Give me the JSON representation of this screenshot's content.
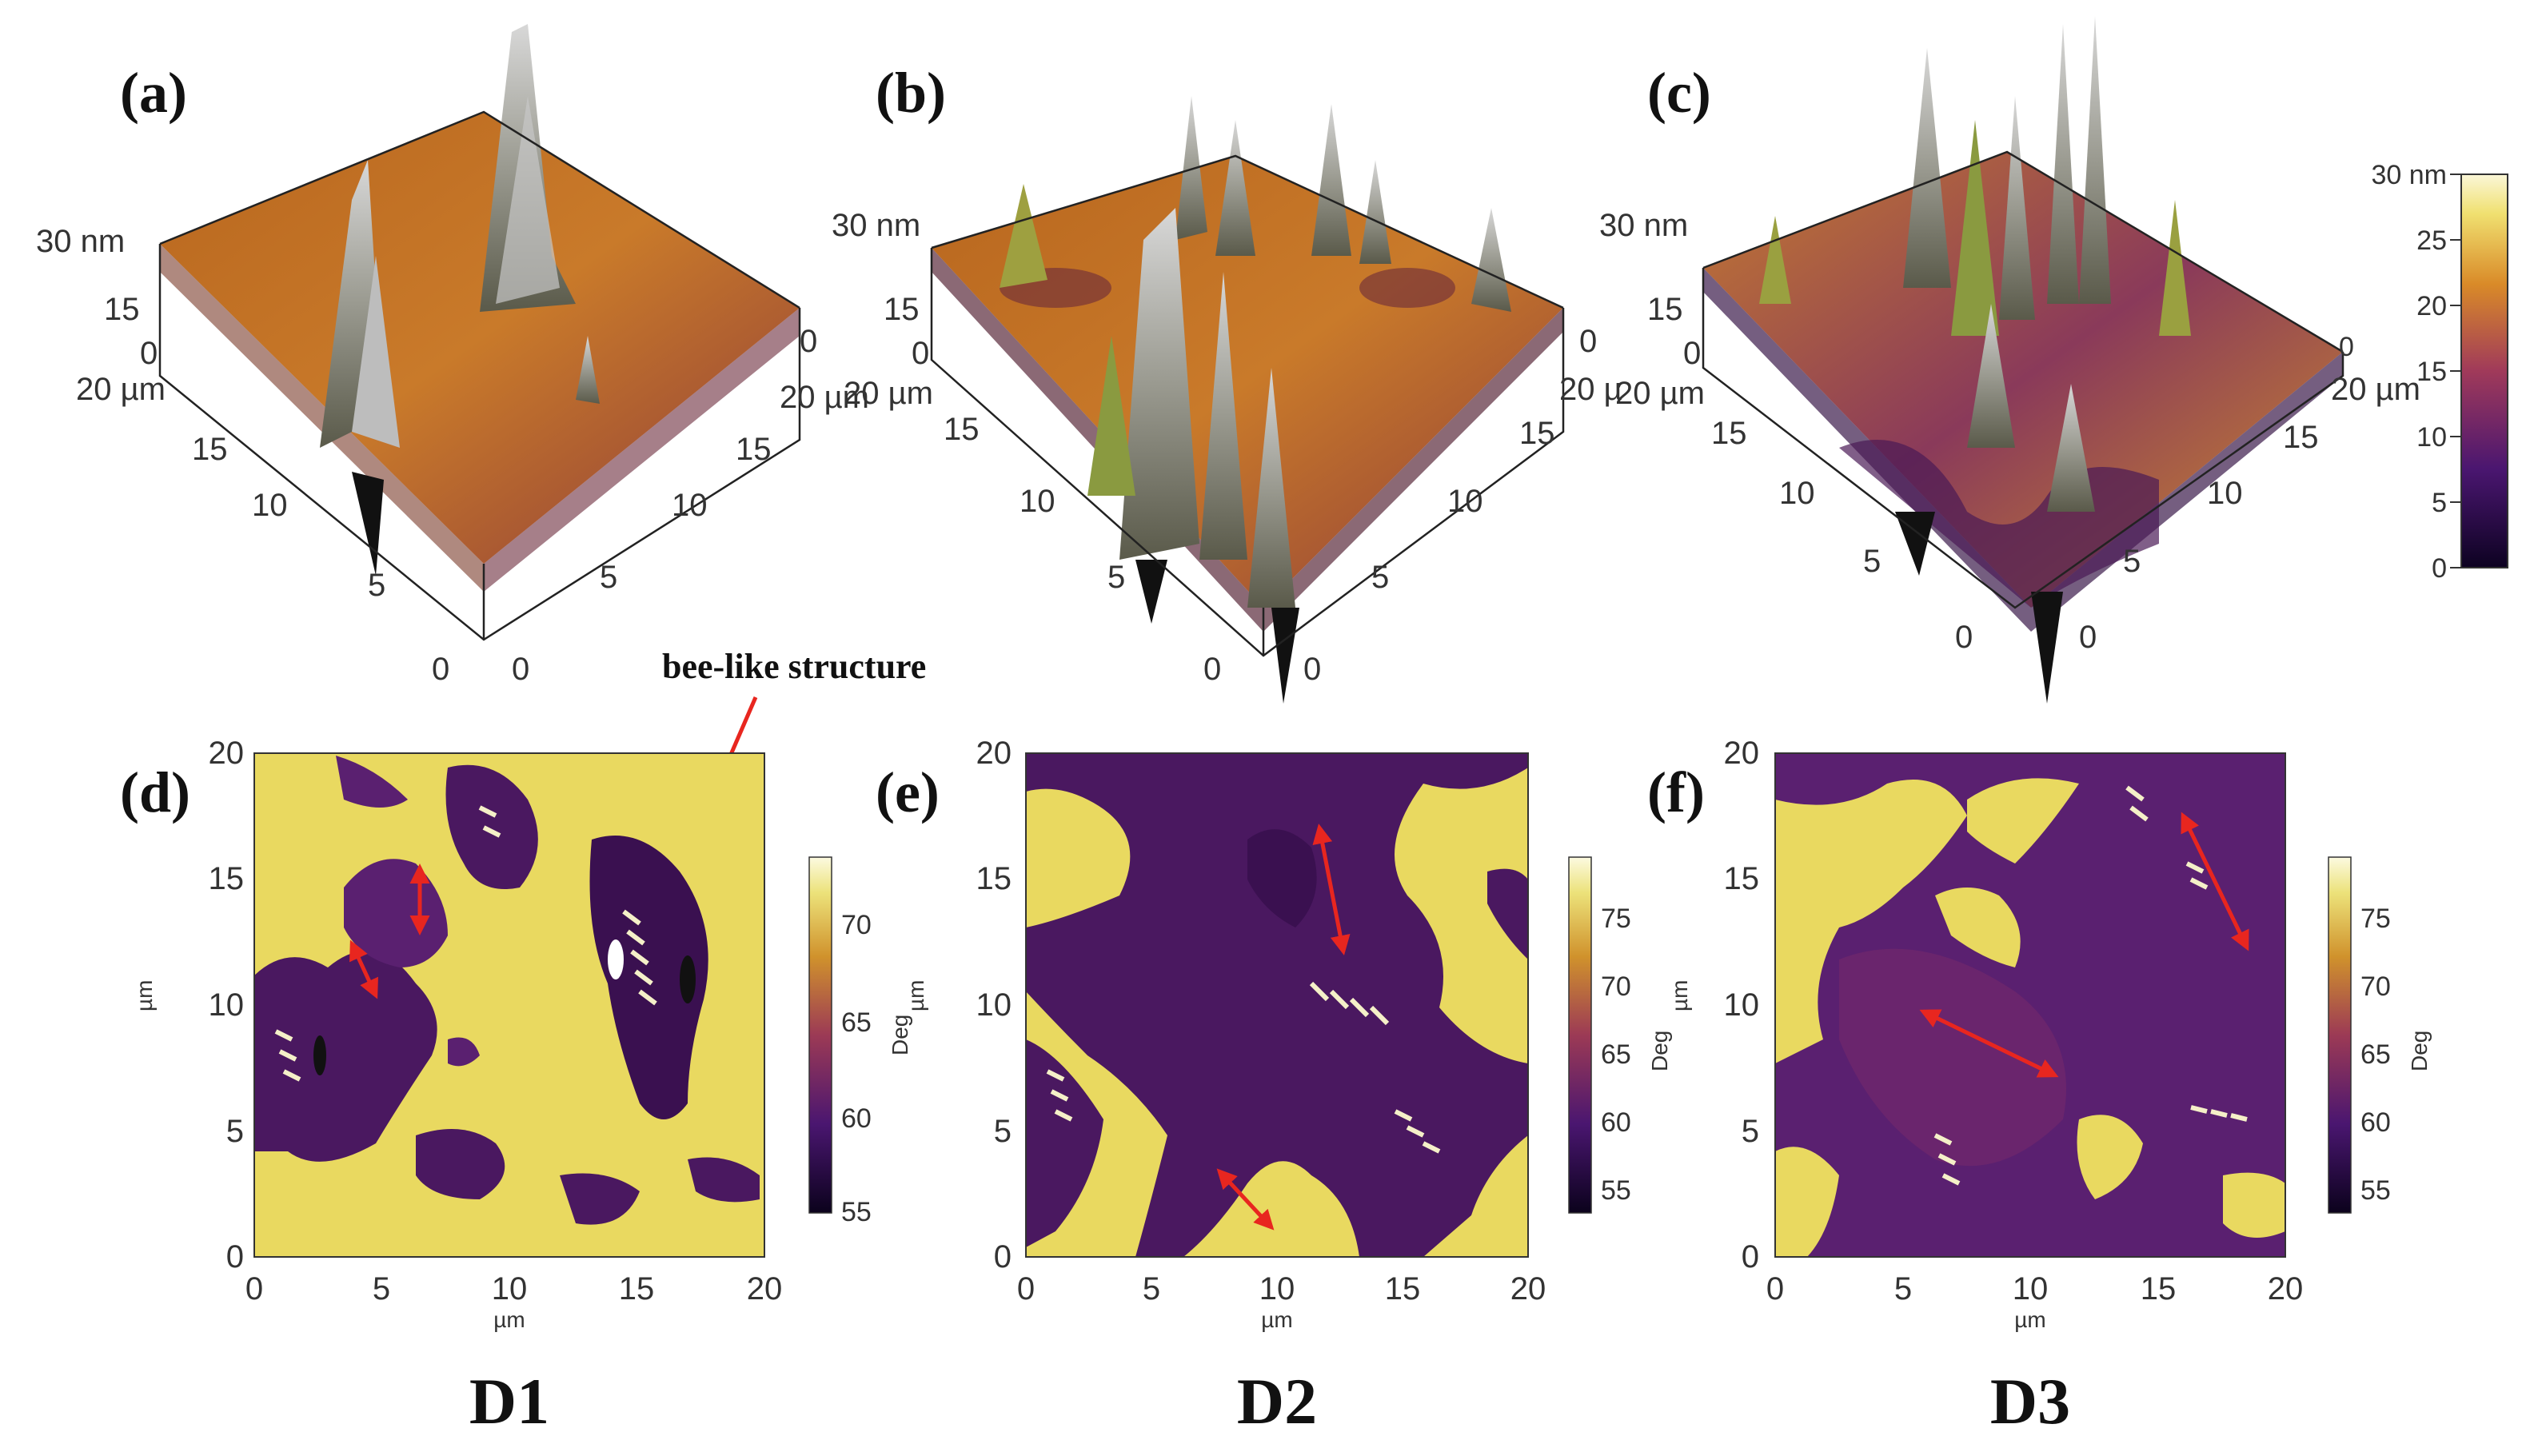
{
  "figure": {
    "topo_panels": [
      {
        "label": "(a)",
        "z_top": "30 nm",
        "z_mid": "15",
        "z_zero": "0",
        "left_axis": [
          "20 µm",
          "15",
          "10",
          "5",
          "0"
        ],
        "right_axis": [
          "0",
          "5",
          "10",
          "15",
          "20 µm"
        ],
        "right_top": "0"
      },
      {
        "label": "(b)",
        "z_top": "30 nm",
        "z_mid": "15",
        "z_zero": "0",
        "left_axis": [
          "20 µm",
          "15",
          "10",
          "5",
          "0"
        ],
        "right_axis": [
          "0",
          "5",
          "10",
          "15",
          "20 µ"
        ],
        "right_top": "0"
      },
      {
        "label": "(c)",
        "z_top": "30 nm",
        "z_mid": "15",
        "z_zero": "0",
        "left_axis": [
          "20 µm",
          "15",
          "10",
          "5",
          "0"
        ],
        "right_axis": [
          "0",
          "5",
          "10",
          "15",
          "20 µm"
        ],
        "right_top": "0"
      }
    ],
    "height_colorbar": {
      "ticks": [
        "30 nm",
        "25",
        "20",
        "15",
        "10",
        "5",
        "0"
      ],
      "range_nm": [
        0,
        30
      ]
    },
    "annotation": "bee-like structure",
    "phase_panels": [
      {
        "label": "(d)",
        "ylabel": "µm",
        "xlabel": "µm",
        "cb_label": "Deg",
        "x_ticks": [
          "0",
          "5",
          "10",
          "15",
          "20"
        ],
        "y_ticks": [
          "0",
          "5",
          "10",
          "15",
          "20"
        ],
        "cb_ticks": [
          "70",
          "65",
          "60",
          "55"
        ],
        "cb_range_deg": [
          54,
          74
        ],
        "sample": "D1"
      },
      {
        "label": "(e)",
        "ylabel": "µm",
        "xlabel": "µm",
        "cb_label": "Deg",
        "x_ticks": [
          "0",
          "5",
          "10",
          "15",
          "20"
        ],
        "y_ticks": [
          "0",
          "5",
          "10",
          "15",
          "20"
        ],
        "cb_ticks": [
          "75",
          "70",
          "65",
          "60",
          "55"
        ],
        "cb_range_deg": [
          53,
          79
        ],
        "sample": "D2"
      },
      {
        "label": "(f)",
        "ylabel": "µm",
        "xlabel": "µm",
        "cb_label": "Deg",
        "x_ticks": [
          "0",
          "5",
          "10",
          "15",
          "20"
        ],
        "y_ticks": [
          "0",
          "5",
          "10",
          "15",
          "20"
        ],
        "cb_ticks": [
          "75",
          "70",
          "65",
          "60",
          "55"
        ],
        "cb_range_deg": [
          53,
          79
        ],
        "sample": "D3"
      }
    ],
    "colors": {
      "gold": "#f2e27a",
      "orange": "#c9782a",
      "purple": "#5b1f73",
      "dark": "#17062a",
      "gray": "#a8a8a8",
      "arrow": "#e8261f"
    }
  }
}
